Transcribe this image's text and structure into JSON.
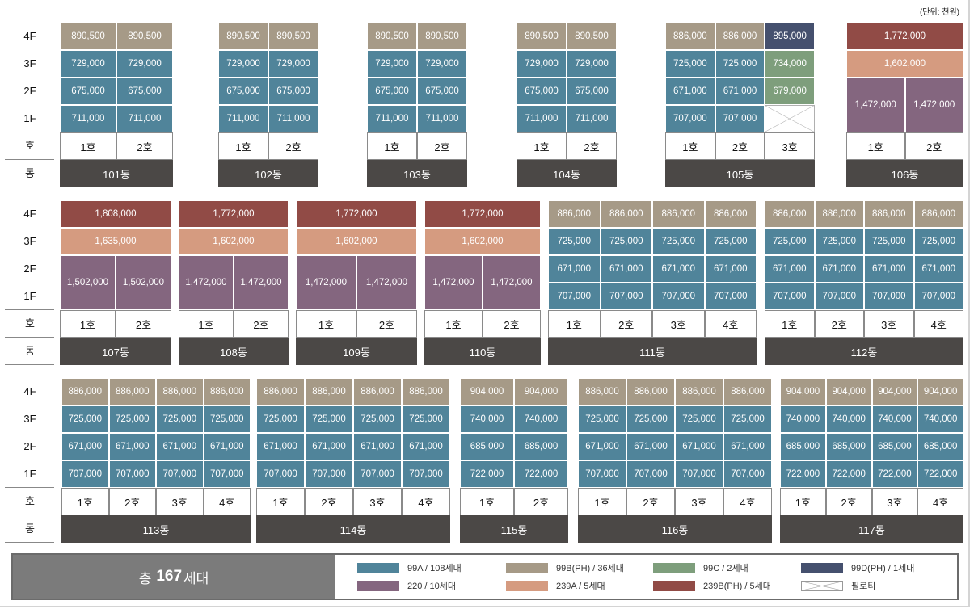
{
  "unit_note": "(단위: 천원)",
  "floors": [
    "4F",
    "3F",
    "2F",
    "1F"
  ],
  "row_labels": {
    "ho": "호",
    "dong": "동"
  },
  "types": {
    "99A": {
      "color": "#50849a",
      "label": "99A / 108세대"
    },
    "99B": {
      "color": "#a69a87",
      "label": "99B(PH) / 36세대"
    },
    "99C": {
      "color": "#7e9e7c",
      "label": "99C / 2세대"
    },
    "99D": {
      "color": "#45506e",
      "label": "99D(PH) / 1세대"
    },
    "220": {
      "color": "#84667f",
      "label": "220 / 10세대"
    },
    "239A": {
      "color": "#d59b80",
      "label": "239A / 5세대"
    },
    "239B": {
      "color": "#914b46",
      "label": "239B(PH) / 5세대"
    },
    "piloti": {
      "color": "#ffffff",
      "label": "필로티"
    }
  },
  "legend_order": [
    "99A",
    "220",
    "99B",
    "239A",
    "99C",
    "239B",
    "99D",
    "piloti"
  ],
  "total": {
    "prefix": "총",
    "count": "167",
    "suffix": "세대"
  },
  "buildings": [
    {
      "dong": "101동",
      "units": [
        "1호",
        "2호"
      ],
      "cols": [
        [
          "890,500",
          "729,000",
          "675,000",
          "711,000"
        ],
        [
          "890,500",
          "729,000",
          "675,000",
          "711,000"
        ]
      ],
      "types": [
        [
          "99B",
          "99A",
          "99A",
          "99A"
        ],
        [
          "99B",
          "99A",
          "99A",
          "99A"
        ]
      ]
    },
    {
      "dong": "102동",
      "units": [
        "1호",
        "2호"
      ],
      "cols": [
        [
          "890,500",
          "729,000",
          "675,000",
          "711,000"
        ],
        [
          "890,500",
          "729,000",
          "675,000",
          "711,000"
        ]
      ],
      "types": [
        [
          "99B",
          "99A",
          "99A",
          "99A"
        ],
        [
          "99B",
          "99A",
          "99A",
          "99A"
        ]
      ]
    },
    {
      "dong": "103동",
      "units": [
        "1호",
        "2호"
      ],
      "cols": [
        [
          "890,500",
          "729,000",
          "675,000",
          "711,000"
        ],
        [
          "890,500",
          "729,000",
          "675,000",
          "711,000"
        ]
      ],
      "types": [
        [
          "99B",
          "99A",
          "99A",
          "99A"
        ],
        [
          "99B",
          "99A",
          "99A",
          "99A"
        ]
      ]
    },
    {
      "dong": "104동",
      "units": [
        "1호",
        "2호"
      ],
      "cols": [
        [
          "890,500",
          "729,000",
          "675,000",
          "711,000"
        ],
        [
          "890,500",
          "729,000",
          "675,000",
          "711,000"
        ]
      ],
      "types": [
        [
          "99B",
          "99A",
          "99A",
          "99A"
        ],
        [
          "99B",
          "99A",
          "99A",
          "99A"
        ]
      ]
    },
    {
      "dong": "105동",
      "units": [
        "1호",
        "2호",
        "3호"
      ],
      "cols": [
        [
          "886,000",
          "725,000",
          "671,000",
          "707,000"
        ],
        [
          "886,000",
          "725,000",
          "671,000",
          "707,000"
        ],
        [
          "895,000",
          "734,000",
          "679,000",
          ""
        ]
      ],
      "types": [
        [
          "99B",
          "99A",
          "99A",
          "99A"
        ],
        [
          "99B",
          "99A",
          "99A",
          "99A"
        ],
        [
          "99D",
          "99C",
          "99C",
          "piloti"
        ]
      ]
    },
    {
      "dong": "106동",
      "units": [
        "1호",
        "2호"
      ],
      "penthouse": {
        "f4": "1,772,000",
        "f3": "1,602,000",
        "low": [
          "1,472,000",
          "1,472,000"
        ]
      }
    },
    {
      "dong": "107동",
      "units": [
        "1호",
        "2호"
      ],
      "penthouse": {
        "f4": "1,808,000",
        "f3": "1,635,000",
        "low": [
          "1,502,000",
          "1,502,000"
        ]
      }
    },
    {
      "dong": "108동",
      "units": [
        "1호",
        "2호"
      ],
      "penthouse": {
        "f4": "1,772,000",
        "f3": "1,602,000",
        "low": [
          "1,472,000",
          "1,472,000"
        ]
      }
    },
    {
      "dong": "109동",
      "units": [
        "1호",
        "2호"
      ],
      "penthouse": {
        "f4": "1,772,000",
        "f3": "1,602,000",
        "low": [
          "1,472,000",
          "1,472,000"
        ]
      }
    },
    {
      "dong": "110동",
      "units": [
        "1호",
        "2호"
      ],
      "penthouse": {
        "f4": "1,772,000",
        "f3": "1,602,000",
        "low": [
          "1,472,000",
          "1,472,000"
        ]
      }
    },
    {
      "dong": "111동",
      "units": [
        "1호",
        "2호",
        "3호",
        "4호"
      ],
      "cols": [
        [
          "886,000",
          "725,000",
          "671,000",
          "707,000"
        ],
        [
          "886,000",
          "725,000",
          "671,000",
          "707,000"
        ],
        [
          "886,000",
          "725,000",
          "671,000",
          "707,000"
        ],
        [
          "886,000",
          "725,000",
          "671,000",
          "707,000"
        ]
      ],
      "types": "std"
    },
    {
      "dong": "112동",
      "units": [
        "1호",
        "2호",
        "3호",
        "4호"
      ],
      "cols": [
        [
          "886,000",
          "725,000",
          "671,000",
          "707,000"
        ],
        [
          "886,000",
          "725,000",
          "671,000",
          "707,000"
        ],
        [
          "886,000",
          "725,000",
          "671,000",
          "707,000"
        ],
        [
          "886,000",
          "725,000",
          "671,000",
          "707,000"
        ]
      ],
      "types": "std"
    },
    {
      "dong": "113동",
      "units": [
        "1호",
        "2호",
        "3호",
        "4호"
      ],
      "cols": [
        [
          "886,000",
          "725,000",
          "671,000",
          "707,000"
        ],
        [
          "886,000",
          "725,000",
          "671,000",
          "707,000"
        ],
        [
          "886,000",
          "725,000",
          "671,000",
          "707,000"
        ],
        [
          "886,000",
          "725,000",
          "671,000",
          "707,000"
        ]
      ],
      "types": "std"
    },
    {
      "dong": "114동",
      "units": [
        "1호",
        "2호",
        "3호",
        "4호"
      ],
      "cols": [
        [
          "886,000",
          "725,000",
          "671,000",
          "707,000"
        ],
        [
          "886,000",
          "725,000",
          "671,000",
          "707,000"
        ],
        [
          "886,000",
          "725,000",
          "671,000",
          "707,000"
        ],
        [
          "886,000",
          "725,000",
          "671,000",
          "707,000"
        ]
      ],
      "types": "std"
    },
    {
      "dong": "115동",
      "units": [
        "1호",
        "2호"
      ],
      "cols": [
        [
          "904,000",
          "740,000",
          "685,000",
          "722,000"
        ],
        [
          "904,000",
          "740,000",
          "685,000",
          "722,000"
        ]
      ],
      "types": "std"
    },
    {
      "dong": "116동",
      "units": [
        "1호",
        "2호",
        "3호",
        "4호"
      ],
      "cols": [
        [
          "886,000",
          "725,000",
          "671,000",
          "707,000"
        ],
        [
          "886,000",
          "725,000",
          "671,000",
          "707,000"
        ],
        [
          "886,000",
          "725,000",
          "671,000",
          "707,000"
        ],
        [
          "886,000",
          "725,000",
          "671,000",
          "707,000"
        ]
      ],
      "types": "std"
    },
    {
      "dong": "117동",
      "units": [
        "1호",
        "2호",
        "3호",
        "4호"
      ],
      "cols": [
        [
          "904,000",
          "740,000",
          "685,000",
          "722,000"
        ],
        [
          "904,000",
          "740,000",
          "685,000",
          "722,000"
        ],
        [
          "904,000",
          "740,000",
          "685,000",
          "722,000"
        ],
        [
          "904,000",
          "740,000",
          "685,000",
          "722,000"
        ]
      ],
      "types": "std"
    }
  ]
}
